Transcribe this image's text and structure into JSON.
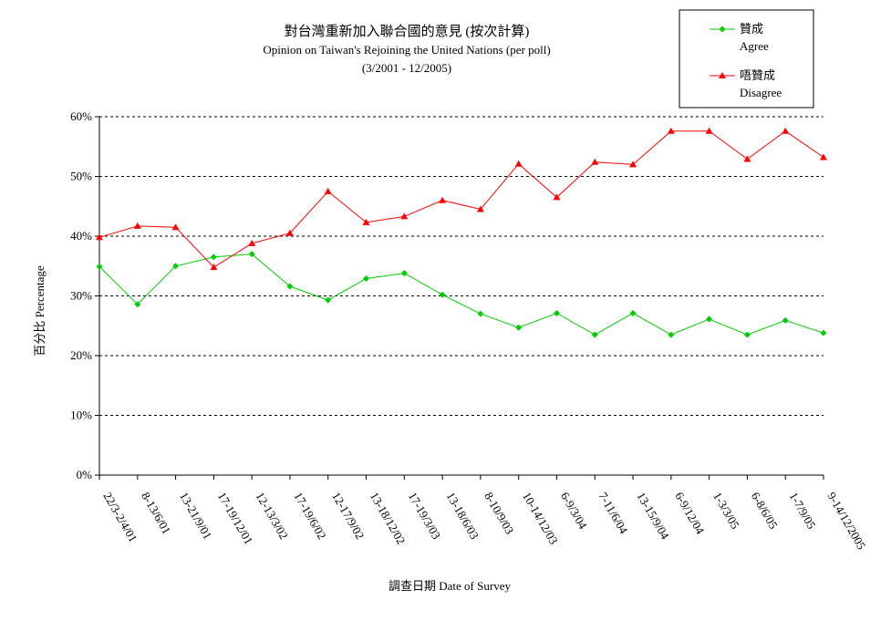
{
  "chart_data": {
    "type": "line",
    "title": "對台灣重新加入聯合國的意見 (按次計算)",
    "subtitle": "Opinion on Taiwan's Rejoining the United Nations (per poll)",
    "period": "(3/2001 - 12/2005)",
    "xlabel": "調查日期 Date of Survey",
    "ylabel": "百分比 Percentage",
    "ylim": [
      0,
      60
    ],
    "yticks": [
      "0%",
      "10%",
      "20%",
      "30%",
      "40%",
      "50%",
      "60%"
    ],
    "grid": true,
    "legend_position": "top-right",
    "categories": [
      "22/3-2/4/01",
      "8-13/6/01",
      "13-21/9/01",
      "17-19/12/01",
      "12-13/3/02",
      "17-19/6/02",
      "12-17/9/02",
      "13-18/12/02",
      "17-19/3/03",
      "13-18/6/03",
      "8-10/9/03",
      "10-14/12/03",
      "6-9/3/04",
      "7-11/6/04",
      "13-15/9/04",
      "6-9/12/04",
      "1-3/3/05",
      "6-8/6/05",
      "1-7/9/05",
      "9-14/12/2005"
    ],
    "series": [
      {
        "name": "贊成",
        "name_en": "Agree",
        "color": "#00cc00",
        "marker": "diamond",
        "values": [
          34.9,
          28.6,
          35.0,
          36.5,
          37.0,
          31.6,
          29.3,
          32.9,
          33.8,
          30.2,
          27.0,
          24.7,
          27.1,
          23.5,
          27.1,
          23.5,
          26.1,
          23.5,
          25.9,
          23.8
        ]
      },
      {
        "name": "唔贊成",
        "name_en": "Disagree",
        "color": "#ff0000",
        "marker": "triangle",
        "values": [
          39.8,
          41.7,
          41.5,
          34.8,
          38.8,
          40.5,
          47.5,
          42.3,
          43.3,
          46.0,
          44.5,
          52.1,
          46.5,
          52.4,
          52.0,
          57.6,
          57.6,
          52.9,
          57.6,
          53.2
        ]
      }
    ]
  }
}
